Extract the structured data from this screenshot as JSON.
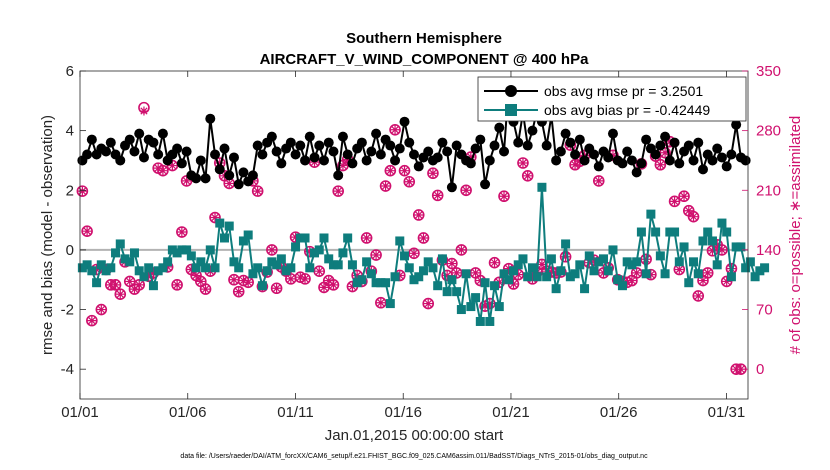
{
  "chart_data": {
    "type": "line",
    "title": "Southern Hemisphere",
    "subtitle": "AIRCRAFT_V_WIND_COMPONENT @ 400 hPa",
    "xlabel": "Jan.01,2015 00:00:00 start",
    "ylabel": "rmse and bias (model - observation)",
    "ylabel_right": "# of obs: o=possible; ∗=assimilated",
    "footer": "data file: /Users/raeder/DAI/ATM_forcXX/CAM6_setup/f.e21.FHIST_BGC.f09_025.CAM6assim.011/BadSST/Diags_NTrS_2015-01/obs_diag_output.nc",
    "xlim": [
      1,
      32
    ],
    "ylim": [
      -5,
      6
    ],
    "ylim_right": [
      -35,
      350
    ],
    "x_ticks": [
      1,
      6,
      11,
      16,
      21,
      26,
      31
    ],
    "x_tick_labels": [
      "01/01",
      "01/06",
      "01/11",
      "01/16",
      "01/21",
      "01/26",
      "01/31"
    ],
    "y_ticks": [
      -4,
      -2,
      0,
      2,
      4,
      6
    ],
    "y_tick_labels": [
      "-4",
      "-2",
      "0",
      "2",
      "4",
      "6"
    ],
    "y_ticks_right": [
      0,
      70,
      140,
      210,
      280,
      350
    ],
    "y_tick_labels_right": [
      "0",
      "70",
      "140",
      "210",
      "280",
      "350"
    ],
    "legend": [
      "obs avg rmse pr = 3.2501",
      "obs avg bias pr = -0.42449"
    ],
    "legend_position": "top-right",
    "colors": {
      "rmse": "#000000",
      "bias": "#0e7d7d",
      "count": "#d0106e",
      "zero_line": "#b3b3b3"
    },
    "series": [
      {
        "name": "obs avg rmse pr = 3.2501",
        "values": [
          3.0,
          3.2,
          3.7,
          3.2,
          3.4,
          3.3,
          3.6,
          3.2,
          3.0,
          3.5,
          3.7,
          3.3,
          3.9,
          3.1,
          3.7,
          3.6,
          3.2,
          3.9,
          3.0,
          3.2,
          3.4,
          2.9,
          3.3,
          2.5,
          2.4,
          3.0,
          2.4,
          4.4,
          3.2,
          2.7,
          3.4,
          2.5,
          3.1,
          2.2,
          2.6,
          2.3,
          2.5,
          3.5,
          3.2,
          3.6,
          3.8,
          3.3,
          2.9,
          3.4,
          3.6,
          3.2,
          3.5,
          3.0,
          3.8,
          3.1,
          3.5,
          3.0,
          3.6,
          3.3,
          2.5,
          3.8,
          3.2,
          2.9,
          3.4,
          3.6,
          3.0,
          3.3,
          3.9,
          3.2,
          3.7,
          3.5,
          3.0,
          3.4,
          4.3,
          3.6,
          3.2,
          2.8,
          3.1,
          3.3,
          3.0,
          3.1,
          3.6,
          3.3,
          2.1,
          3.5,
          3.2,
          3.0,
          2.9,
          3.4,
          3.7,
          2.2,
          3.0,
          3.5,
          4.1,
          3.3,
          5.5,
          4.3,
          3.6,
          4.6,
          3.5,
          4.0,
          4.7,
          4.3,
          3.5,
          4.5,
          3.0,
          3.3,
          3.9,
          3.6,
          3.2,
          3.7,
          3.0,
          3.4,
          3.2,
          2.8,
          3.3,
          3.1,
          3.9,
          3.0,
          2.9,
          3.3,
          3.0,
          2.6,
          2.9,
          3.7,
          3.4,
          3.2,
          3.5,
          3.8,
          3.0,
          3.6,
          2.9,
          3.3,
          3.5,
          3.0,
          3.6,
          2.7,
          3.2,
          3.0,
          3.4,
          3.1,
          2.8,
          3.2,
          4.2,
          3.1,
          3.0
        ]
      },
      {
        "name": "obs avg bias pr = -0.42449",
        "values": [
          -0.6,
          -0.5,
          -0.7,
          -1.1,
          -0.5,
          -0.7,
          -0.6,
          -0.1,
          0.2,
          -0.3,
          -0.4,
          -0.1,
          -0.7,
          -0.9,
          -0.6,
          -1.2,
          -0.7,
          -0.6,
          -0.4,
          0.0,
          -0.1,
          0.0,
          0.0,
          -0.2,
          -0.6,
          -0.4,
          -0.6,
          0.0,
          -0.6,
          0.9,
          0.4,
          0.8,
          -0.4,
          -0.6,
          0.3,
          0.5,
          -0.8,
          -0.6,
          -1.2,
          -0.7,
          -0.4,
          -0.5,
          -0.3,
          -0.7,
          -0.6,
          0.1,
          0.4,
          0.4,
          -0.6,
          -0.1,
          0.0,
          0.4,
          -0.3,
          -0.5,
          -0.5,
          -0.1,
          0.4,
          -0.5,
          -1.1,
          -1.0,
          -0.4,
          -0.8,
          -1.1,
          -1.1,
          -1.1,
          -1.8,
          -0.9,
          0.3,
          -0.2,
          -0.6,
          -1.0,
          -0.9,
          -0.7,
          -0.4,
          -0.6,
          -1.2,
          -0.3,
          -1.4,
          -1.0,
          -1.4,
          -2.0,
          -0.8,
          -1.9,
          -1.6,
          -2.4,
          -1.1,
          -2.4,
          -1.2,
          -1.9,
          -0.8,
          -1.0,
          -0.7,
          -0.5,
          -0.3,
          -0.9,
          -0.6,
          -0.9,
          2.1,
          -0.9,
          -0.3,
          -1.3,
          -0.7,
          0.2,
          -0.9,
          -0.8,
          -0.5,
          -1.3,
          -0.2,
          -0.7,
          -0.4,
          -0.3,
          -0.7,
          0.0,
          -1.0,
          -1.2,
          -0.4,
          -0.5,
          -0.4,
          0.6,
          -0.8,
          1.2,
          0.6,
          -0.2,
          -0.8,
          0.6,
          0.6,
          -0.4,
          0.1,
          -1.1,
          -0.4,
          -0.8,
          0.3,
          0.6,
          0.3,
          -0.5,
          0.9,
          0.6,
          -0.9,
          0.1,
          0.1,
          -0.6,
          -0.4,
          -0.9,
          -0.7,
          -0.6
        ]
      },
      {
        "name": "# of obs possible",
        "marker": "circle",
        "values": [
          209,
          162,
          57,
          117,
          70,
          117,
          99,
          99,
          88,
          126,
          103,
          94,
          99,
          307,
          109,
          113,
          236,
          233,
          120,
          239,
          99,
          161,
          221,
          117,
          110,
          103,
          94,
          115,
          178,
          242,
          227,
          218,
          105,
          91,
          104,
          102,
          221,
          209,
          97,
          114,
          140,
          95,
          120,
          115,
          106,
          155,
          108,
          106,
          138,
          243,
          115,
          96,
          104,
          99,
          209,
          239,
          246,
          97,
          110,
          103,
          154,
          115,
          134,
          78,
          215,
          233,
          281,
          110,
          233,
          220,
          136,
          181,
          154,
          77,
          230,
          204,
          128,
          110,
          124,
          113,
          140,
          210,
          249,
          113,
          104,
          74,
          77,
          125,
          102,
          203,
          118,
          100,
          111,
          242,
          227,
          106,
          114,
          123,
          115,
          114,
          113,
          114,
          132,
          263,
          240,
          244,
          251,
          125,
          128,
          221,
          113,
          119,
          251,
          105,
          103,
          102,
          104,
          113,
          241,
          129,
          111,
          250,
          240,
          254,
          267,
          197,
          117,
          203,
          186,
          179,
          86,
          104,
          113,
          139,
          146,
          140,
          103,
          118,
          0,
          0
        ]
      },
      {
        "name": "# of obs assimilated",
        "marker": "star",
        "values": [
          209,
          162,
          57,
          117,
          70,
          117,
          99,
          99,
          88,
          126,
          103,
          94,
          99,
          303,
          109,
          113,
          236,
          233,
          120,
          239,
          99,
          161,
          221,
          117,
          110,
          103,
          94,
          115,
          178,
          242,
          227,
          218,
          105,
          91,
          104,
          102,
          221,
          209,
          97,
          114,
          140,
          95,
          120,
          115,
          106,
          155,
          108,
          106,
          138,
          243,
          115,
          96,
          104,
          99,
          209,
          239,
          246,
          97,
          110,
          103,
          154,
          115,
          134,
          78,
          215,
          233,
          281,
          110,
          233,
          220,
          136,
          181,
          154,
          77,
          230,
          204,
          128,
          110,
          124,
          113,
          140,
          210,
          249,
          113,
          104,
          74,
          77,
          125,
          102,
          203,
          118,
          100,
          111,
          242,
          227,
          106,
          114,
          123,
          115,
          114,
          113,
          114,
          132,
          263,
          240,
          244,
          251,
          125,
          128,
          221,
          113,
          119,
          251,
          105,
          103,
          102,
          104,
          113,
          241,
          129,
          111,
          250,
          240,
          254,
          267,
          197,
          117,
          203,
          186,
          179,
          86,
          104,
          113,
          139,
          146,
          140,
          103,
          118,
          0,
          0
        ]
      }
    ]
  }
}
